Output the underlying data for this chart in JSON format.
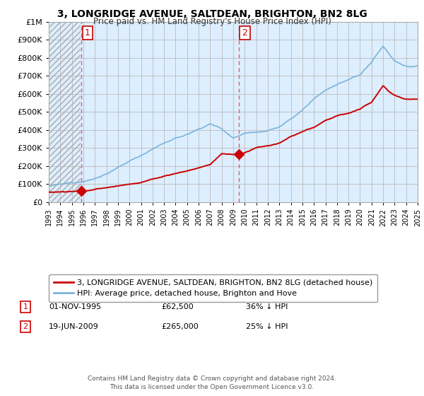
{
  "title": "3, LONGRIDGE AVENUE, SALTDEAN, BRIGHTON, BN2 8LG",
  "subtitle": "Price paid vs. HM Land Registry's House Price Index (HPI)",
  "ylabel_ticks": [
    "£0",
    "£100K",
    "£200K",
    "£300K",
    "£400K",
    "£500K",
    "£600K",
    "£700K",
    "£800K",
    "£900K",
    "£1M"
  ],
  "ytick_values": [
    0,
    100000,
    200000,
    300000,
    400000,
    500000,
    600000,
    700000,
    800000,
    900000,
    1000000
  ],
  "ylim": [
    0,
    1000000
  ],
  "xlim_start": 1993,
  "xlim_end": 2025,
  "purchase1": {
    "date_num": 1995.83,
    "price": 62500,
    "label": "1"
  },
  "purchase2": {
    "date_num": 2009.47,
    "price": 265000,
    "label": "2"
  },
  "legend_entry1": "3, LONGRIDGE AVENUE, SALTDEAN, BRIGHTON, BN2 8LG (detached house)",
  "legend_entry2": "HPI: Average price, detached house, Brighton and Hove",
  "note1_label": "1",
  "note1_date": "01-NOV-1995",
  "note1_price": "£62,500",
  "note1_hpi": "36% ↓ HPI",
  "note2_label": "2",
  "note2_date": "19-JUN-2009",
  "note2_price": "£265,000",
  "note2_hpi": "25% ↓ HPI",
  "footer": "Contains HM Land Registry data © Crown copyright and database right 2024.\nThis data is licensed under the Open Government Licence v3.0.",
  "hpi_color": "#7ab4d8",
  "price_color": "#cc0000",
  "marker_color": "#cc0000",
  "vline_color": "#e06060",
  "grid_color": "#bbbbbb",
  "bg_fill": "#ddeeff",
  "bg_color": "#ffffff"
}
